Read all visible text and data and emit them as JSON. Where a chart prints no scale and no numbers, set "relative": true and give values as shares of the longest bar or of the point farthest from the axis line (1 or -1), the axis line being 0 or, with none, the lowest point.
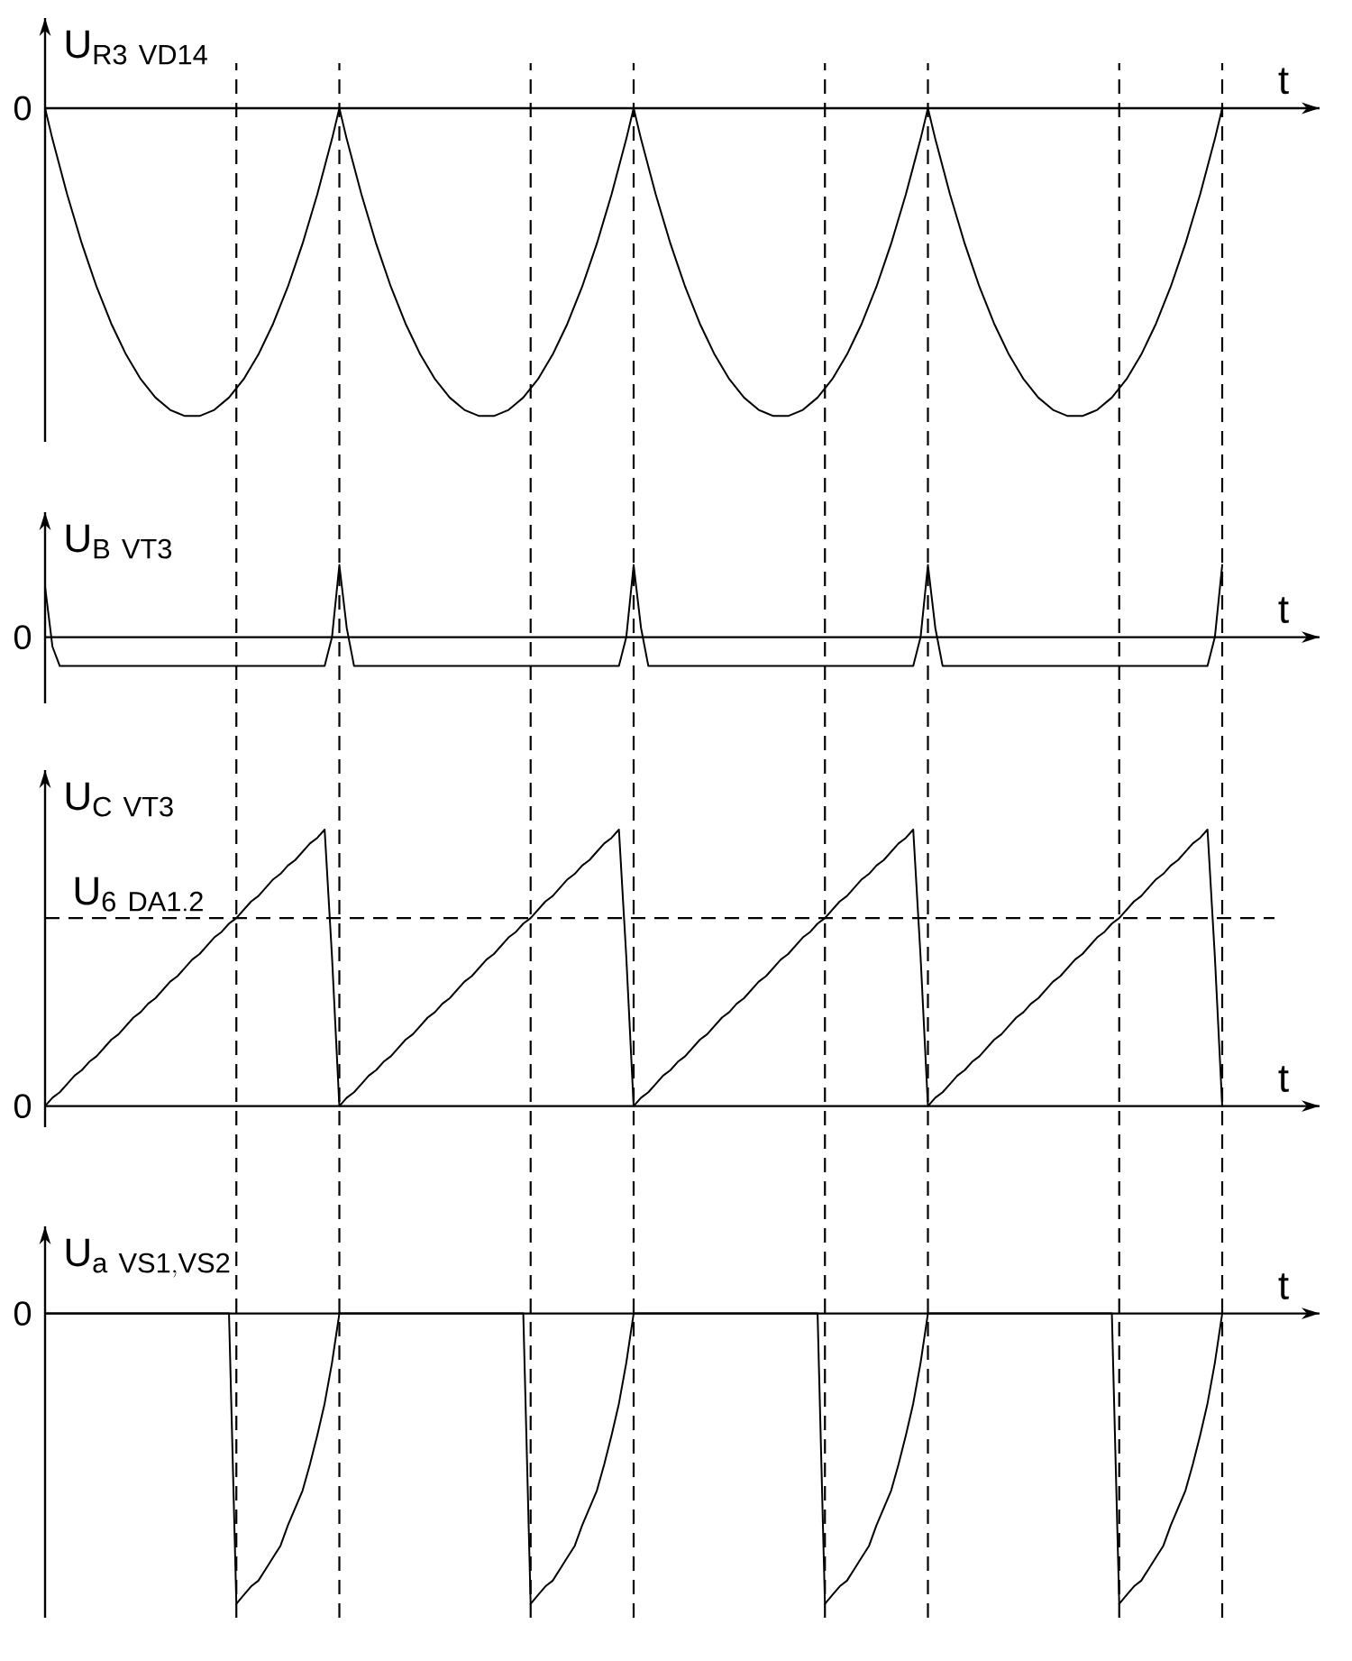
{
  "chart_data": [
    {
      "type": "line",
      "relative": true,
      "ylabel": "\\mathrm{U}_{\\mathrm{R3\\ VD14}}",
      "xlabel": "t",
      "annotations": [
        "0"
      ],
      "color": "#000000",
      "categories": [
        null,
        null,
        null,
        null,
        null,
        null,
        null,
        null,
        null,
        null,
        null,
        null,
        null,
        null,
        null,
        null,
        null,
        null,
        null,
        null,
        null,
        null,
        null,
        null,
        null,
        null,
        null,
        null,
        null,
        null,
        null,
        null,
        null,
        null,
        null,
        null,
        null,
        null,
        null,
        null,
        null,
        null,
        null,
        null,
        null,
        null,
        null,
        null,
        null,
        null,
        null,
        null,
        null,
        null,
        null,
        null,
        null,
        null,
        null,
        null,
        null,
        null,
        null,
        null,
        null,
        null,
        null,
        null,
        null,
        null,
        null,
        null,
        null,
        null,
        null,
        null,
        null,
        null,
        null,
        null,
        null,
        null,
        null,
        null,
        null,
        null,
        null,
        null,
        null,
        null,
        null,
        null,
        null,
        null,
        null,
        null,
        null,
        null,
        null,
        null,
        null,
        null,
        null,
        null,
        null,
        null,
        null,
        null,
        null,
        null,
        null,
        null,
        null,
        null,
        null,
        null,
        null,
        null,
        null,
        null,
        null,
        null,
        null,
        null,
        null,
        null,
        null,
        null,
        null,
        null,
        null,
        null,
        null,
        null,
        null,
        null,
        null,
        null,
        null,
        null,
        null,
        null,
        null,
        null,
        null,
        null,
        null,
        null,
        null,
        null,
        null,
        null,
        null,
        null,
        null,
        null,
        null,
        null,
        null,
        null,
        null
      ],
      "values": [
        0,
        -0.1,
        -0.19,
        -0.28,
        -0.36,
        -0.44,
        -0.51,
        -0.58,
        -0.64,
        -0.7,
        -0.75,
        -0.8,
        -0.84,
        -0.88,
        -0.91,
        -0.94,
        -0.96,
        -0.98,
        -0.99,
        -1,
        -1,
        -1,
        -0.99,
        -0.98,
        -0.96,
        -0.94,
        -0.91,
        -0.88,
        -0.84,
        -0.8,
        -0.75,
        -0.7,
        -0.64,
        -0.58,
        -0.51,
        -0.44,
        -0.36,
        -0.28,
        -0.19,
        -0.1,
        0,
        -0.1,
        -0.19,
        -0.28,
        -0.36,
        -0.44,
        -0.51,
        -0.58,
        -0.64,
        -0.7,
        -0.75,
        -0.8,
        -0.84,
        -0.88,
        -0.91,
        -0.94,
        -0.96,
        -0.98,
        -0.99,
        -1,
        -1,
        -1,
        -0.99,
        -0.98,
        -0.96,
        -0.94,
        -0.91,
        -0.88,
        -0.84,
        -0.8,
        -0.75,
        -0.7,
        -0.64,
        -0.58,
        -0.51,
        -0.44,
        -0.36,
        -0.28,
        -0.19,
        -0.1,
        0,
        -0.1,
        -0.19,
        -0.28,
        -0.36,
        -0.44,
        -0.51,
        -0.58,
        -0.64,
        -0.7,
        -0.75,
        -0.8,
        -0.84,
        -0.88,
        -0.91,
        -0.94,
        -0.96,
        -0.98,
        -0.99,
        -1,
        -1,
        -1,
        -0.99,
        -0.98,
        -0.96,
        -0.94,
        -0.91,
        -0.88,
        -0.84,
        -0.8,
        -0.75,
        -0.7,
        -0.64,
        -0.58,
        -0.51,
        -0.44,
        -0.36,
        -0.28,
        -0.19,
        -0.1,
        0,
        -0.1,
        -0.19,
        -0.28,
        -0.36,
        -0.44,
        -0.51,
        -0.58,
        -0.64,
        -0.7,
        -0.75,
        -0.8,
        -0.84,
        -0.88,
        -0.91,
        -0.94,
        -0.96,
        -0.98,
        -0.99,
        -1,
        -1,
        -1,
        -0.99,
        -0.98,
        -0.96,
        -0.94,
        -0.91,
        -0.88,
        -0.84,
        -0.8,
        -0.75,
        -0.7,
        -0.64,
        -0.58,
        -0.51,
        -0.44,
        -0.36,
        -0.28,
        -0.19,
        -0.1,
        0
      ]
    },
    {
      "type": "line",
      "relative": true,
      "ylabel": "\\mathrm{U}_{\\mathrm{B\\ VT3}}",
      "xlabel": "t",
      "annotations": [
        "0"
      ],
      "color": "#000000",
      "categories": [
        null,
        null,
        null,
        null,
        null,
        null,
        null,
        null,
        null,
        null,
        null,
        null,
        null,
        null,
        null,
        null,
        null,
        null,
        null,
        null,
        null,
        null,
        null,
        null,
        null,
        null,
        null,
        null,
        null,
        null,
        null,
        null,
        null,
        null,
        null,
        null,
        null,
        null,
        null,
        null,
        null,
        null,
        null,
        null,
        null,
        null,
        null,
        null,
        null,
        null,
        null,
        null,
        null,
        null,
        null,
        null,
        null,
        null,
        null,
        null,
        null,
        null,
        null,
        null,
        null,
        null,
        null,
        null,
        null,
        null,
        null,
        null,
        null,
        null,
        null,
        null,
        null,
        null,
        null,
        null,
        null,
        null,
        null,
        null,
        null,
        null,
        null,
        null,
        null,
        null,
        null,
        null,
        null,
        null,
        null,
        null,
        null,
        null,
        null,
        null,
        null,
        null,
        null,
        null,
        null,
        null,
        null,
        null,
        null,
        null,
        null,
        null,
        null,
        null,
        null,
        null,
        null,
        null,
        null,
        null,
        null,
        null,
        null,
        null,
        null,
        null,
        null,
        null,
        null,
        null,
        null,
        null,
        null,
        null,
        null,
        null,
        null,
        null,
        null,
        null,
        null,
        null,
        null,
        null,
        null,
        null,
        null,
        null,
        null,
        null,
        null,
        null,
        null,
        null,
        null,
        null,
        null,
        null,
        null,
        null,
        null
      ],
      "values": [
        0.7,
        -0.13,
        -0.4,
        -0.4,
        -0.4,
        -0.4,
        -0.4,
        -0.4,
        -0.4,
        -0.4,
        -0.4,
        -0.4,
        -0.4,
        -0.4,
        -0.4,
        -0.4,
        -0.4,
        -0.4,
        -0.4,
        -0.4,
        -0.4,
        -0.4,
        -0.4,
        -0.4,
        -0.4,
        -0.4,
        -0.4,
        -0.4,
        -0.4,
        -0.4,
        -0.4,
        -0.4,
        -0.4,
        -0.4,
        -0.4,
        -0.4,
        -0.4,
        -0.4,
        -0.4,
        0,
        1,
        0.13,
        -0.4,
        -0.4,
        -0.4,
        -0.4,
        -0.4,
        -0.4,
        -0.4,
        -0.4,
        -0.4,
        -0.4,
        -0.4,
        -0.4,
        -0.4,
        -0.4,
        -0.4,
        -0.4,
        -0.4,
        -0.4,
        -0.4,
        -0.4,
        -0.4,
        -0.4,
        -0.4,
        -0.4,
        -0.4,
        -0.4,
        -0.4,
        -0.4,
        -0.4,
        -0.4,
        -0.4,
        -0.4,
        -0.4,
        -0.4,
        -0.4,
        -0.4,
        -0.4,
        0,
        1,
        0.13,
        -0.4,
        -0.4,
        -0.4,
        -0.4,
        -0.4,
        -0.4,
        -0.4,
        -0.4,
        -0.4,
        -0.4,
        -0.4,
        -0.4,
        -0.4,
        -0.4,
        -0.4,
        -0.4,
        -0.4,
        -0.4,
        -0.4,
        -0.4,
        -0.4,
        -0.4,
        -0.4,
        -0.4,
        -0.4,
        -0.4,
        -0.4,
        -0.4,
        -0.4,
        -0.4,
        -0.4,
        -0.4,
        -0.4,
        -0.4,
        -0.4,
        -0.4,
        -0.4,
        0,
        1,
        0.13,
        -0.4,
        -0.4,
        -0.4,
        -0.4,
        -0.4,
        -0.4,
        -0.4,
        -0.4,
        -0.4,
        -0.4,
        -0.4,
        -0.4,
        -0.4,
        -0.4,
        -0.4,
        -0.4,
        -0.4,
        -0.4,
        -0.4,
        -0.4,
        -0.4,
        -0.4,
        -0.4,
        -0.4,
        -0.4,
        -0.4,
        -0.4,
        -0.4,
        -0.4,
        -0.4,
        -0.4,
        -0.4,
        -0.4,
        -0.4,
        -0.4,
        -0.4,
        -0.4,
        0,
        1
      ]
    },
    {
      "type": "line",
      "relative": true,
      "ylabel": "\\mathrm{U}_{\\mathrm{C\\ VT3}}",
      "xlabel": "t",
      "annotations": [
        "0"
      ],
      "color": "#000000",
      "categories": [
        null,
        null,
        null,
        null,
        null,
        null,
        null,
        null,
        null,
        null,
        null,
        null,
        null,
        null,
        null,
        null,
        null,
        null,
        null,
        null,
        null,
        null,
        null,
        null,
        null,
        null,
        null,
        null,
        null,
        null,
        null,
        null,
        null,
        null,
        null,
        null,
        null,
        null,
        null,
        null,
        null,
        null,
        null,
        null,
        null,
        null,
        null,
        null,
        null,
        null,
        null,
        null,
        null,
        null,
        null,
        null,
        null,
        null,
        null,
        null,
        null,
        null,
        null,
        null,
        null,
        null,
        null,
        null,
        null,
        null,
        null,
        null,
        null,
        null,
        null,
        null,
        null,
        null,
        null,
        null,
        null,
        null,
        null,
        null,
        null,
        null,
        null,
        null,
        null,
        null,
        null,
        null,
        null,
        null,
        null,
        null,
        null,
        null,
        null,
        null,
        null,
        null,
        null,
        null,
        null,
        null,
        null,
        null,
        null,
        null,
        null,
        null,
        null,
        null,
        null,
        null,
        null,
        null,
        null,
        null,
        null,
        null,
        null,
        null,
        null,
        null,
        null,
        null,
        null,
        null,
        null,
        null,
        null,
        null,
        null,
        null,
        null,
        null,
        null,
        null,
        null,
        null,
        null,
        null,
        null,
        null,
        null,
        null,
        null,
        null,
        null,
        null,
        null,
        null,
        null,
        null,
        null,
        null,
        null,
        null,
        null
      ],
      "values": [
        0,
        0.03,
        0.05,
        0.08,
        0.11,
        0.13,
        0.16,
        0.18,
        0.21,
        0.24,
        0.26,
        0.29,
        0.32,
        0.34,
        0.37,
        0.39,
        0.42,
        0.45,
        0.47,
        0.5,
        0.53,
        0.55,
        0.58,
        0.61,
        0.63,
        0.66,
        0.68,
        0.71,
        0.74,
        0.76,
        0.79,
        0.82,
        0.84,
        0.87,
        0.89,
        0.92,
        0.95,
        0.97,
        1,
        0.54,
        0,
        0.03,
        0.05,
        0.08,
        0.11,
        0.13,
        0.16,
        0.18,
        0.21,
        0.24,
        0.26,
        0.29,
        0.32,
        0.34,
        0.37,
        0.39,
        0.42,
        0.45,
        0.47,
        0.5,
        0.53,
        0.55,
        0.58,
        0.61,
        0.63,
        0.66,
        0.68,
        0.71,
        0.74,
        0.76,
        0.79,
        0.82,
        0.84,
        0.87,
        0.89,
        0.92,
        0.95,
        0.97,
        1,
        0.54,
        0,
        0.03,
        0.05,
        0.08,
        0.11,
        0.13,
        0.16,
        0.18,
        0.21,
        0.24,
        0.26,
        0.29,
        0.32,
        0.34,
        0.37,
        0.39,
        0.42,
        0.45,
        0.47,
        0.5,
        0.53,
        0.55,
        0.58,
        0.61,
        0.63,
        0.66,
        0.68,
        0.71,
        0.74,
        0.76,
        0.79,
        0.82,
        0.84,
        0.87,
        0.89,
        0.92,
        0.95,
        0.97,
        1,
        0.54,
        0,
        0.03,
        0.05,
        0.08,
        0.11,
        0.13,
        0.16,
        0.18,
        0.21,
        0.24,
        0.26,
        0.29,
        0.32,
        0.34,
        0.37,
        0.39,
        0.42,
        0.45,
        0.47,
        0.5,
        0.53,
        0.55,
        0.58,
        0.61,
        0.63,
        0.66,
        0.68,
        0.71,
        0.74,
        0.76,
        0.79,
        0.82,
        0.84,
        0.87,
        0.89,
        0.92,
        0.95,
        0.97,
        1,
        0.54,
        0
      ],
      "ref_lines": [
        {
          "axis": "y",
          "value": 0.68,
          "label": "\\mathrm{U}_{\\mathrm{6\\ DA1.2}}",
          "line_style": "dashed"
        }
      ]
    },
    {
      "type": "line",
      "relative": true,
      "ylabel": "\\mathrm{U}_{\\mathrm{a\\ VS1,VS2}}",
      "xlabel": "t",
      "annotations": [
        "0"
      ],
      "color": "#000000",
      "categories": [
        null,
        null,
        null,
        null,
        null,
        null,
        null,
        null,
        null,
        null,
        null,
        null,
        null,
        null,
        null,
        null,
        null,
        null,
        null,
        null,
        null,
        null,
        null,
        null,
        null,
        null,
        null,
        null,
        null,
        null,
        null,
        null,
        null,
        null,
        null,
        null,
        null,
        null,
        null,
        null,
        null,
        null,
        null,
        null,
        null,
        null,
        null,
        null,
        null,
        null,
        null,
        null,
        null,
        null,
        null,
        null,
        null,
        null,
        null,
        null,
        null,
        null,
        null,
        null,
        null,
        null,
        null,
        null,
        null,
        null,
        null,
        null,
        null,
        null,
        null,
        null,
        null,
        null,
        null,
        null,
        null,
        null,
        null,
        null,
        null,
        null,
        null,
        null,
        null,
        null,
        null,
        null,
        null,
        null,
        null,
        null,
        null,
        null,
        null,
        null,
        null,
        null,
        null,
        null,
        null,
        null,
        null,
        null,
        null,
        null,
        null,
        null,
        null,
        null,
        null,
        null,
        null,
        null,
        null,
        null,
        null,
        null,
        null,
        null,
        null,
        null,
        null,
        null,
        null,
        null,
        null,
        null,
        null,
        null,
        null,
        null,
        null,
        null,
        null,
        null,
        null,
        null,
        null,
        null,
        null,
        null,
        null,
        null,
        null,
        null,
        null,
        null,
        null,
        null,
        null,
        null,
        null,
        null,
        null,
        null,
        null
      ],
      "values": [
        0,
        0,
        0,
        0,
        0,
        0,
        0,
        0,
        0,
        0,
        0,
        0,
        0,
        0,
        0,
        0,
        0,
        0,
        0,
        0,
        0,
        0,
        0,
        0,
        0,
        0,
        -1,
        -0.97,
        -0.94,
        -0.92,
        -0.88,
        -0.84,
        -0.8,
        -0.73,
        -0.67,
        -0.61,
        -0.52,
        -0.42,
        -0.31,
        -0.17,
        0,
        0,
        0,
        0,
        0,
        0,
        0,
        0,
        0,
        0,
        0,
        0,
        0,
        0,
        0,
        0,
        0,
        0,
        0,
        0,
        0,
        0,
        0,
        0,
        0,
        0,
        -1,
        -0.97,
        -0.94,
        -0.92,
        -0.88,
        -0.84,
        -0.8,
        -0.73,
        -0.67,
        -0.61,
        -0.52,
        -0.42,
        -0.31,
        -0.17,
        0,
        0,
        0,
        0,
        0,
        0,
        0,
        0,
        0,
        0,
        0,
        0,
        0,
        0,
        0,
        0,
        0,
        0,
        0,
        0,
        0,
        0,
        0,
        0,
        0,
        0,
        -1,
        -0.97,
        -0.94,
        -0.92,
        -0.88,
        -0.84,
        -0.8,
        -0.73,
        -0.67,
        -0.61,
        -0.52,
        -0.42,
        -0.31,
        -0.17,
        0,
        0,
        0,
        0,
        0,
        0,
        0,
        0,
        0,
        0,
        0,
        0,
        0,
        0,
        0,
        0,
        0,
        0,
        0,
        0,
        0,
        0,
        0,
        0,
        0,
        0,
        -1,
        -0.97,
        -0.94,
        -0.92,
        -0.88,
        -0.84,
        -0.8,
        -0.73,
        -0.67,
        -0.61,
        -0.52,
        -0.42,
        -0.31,
        -0.17,
        0
      ]
    }
  ]
}
